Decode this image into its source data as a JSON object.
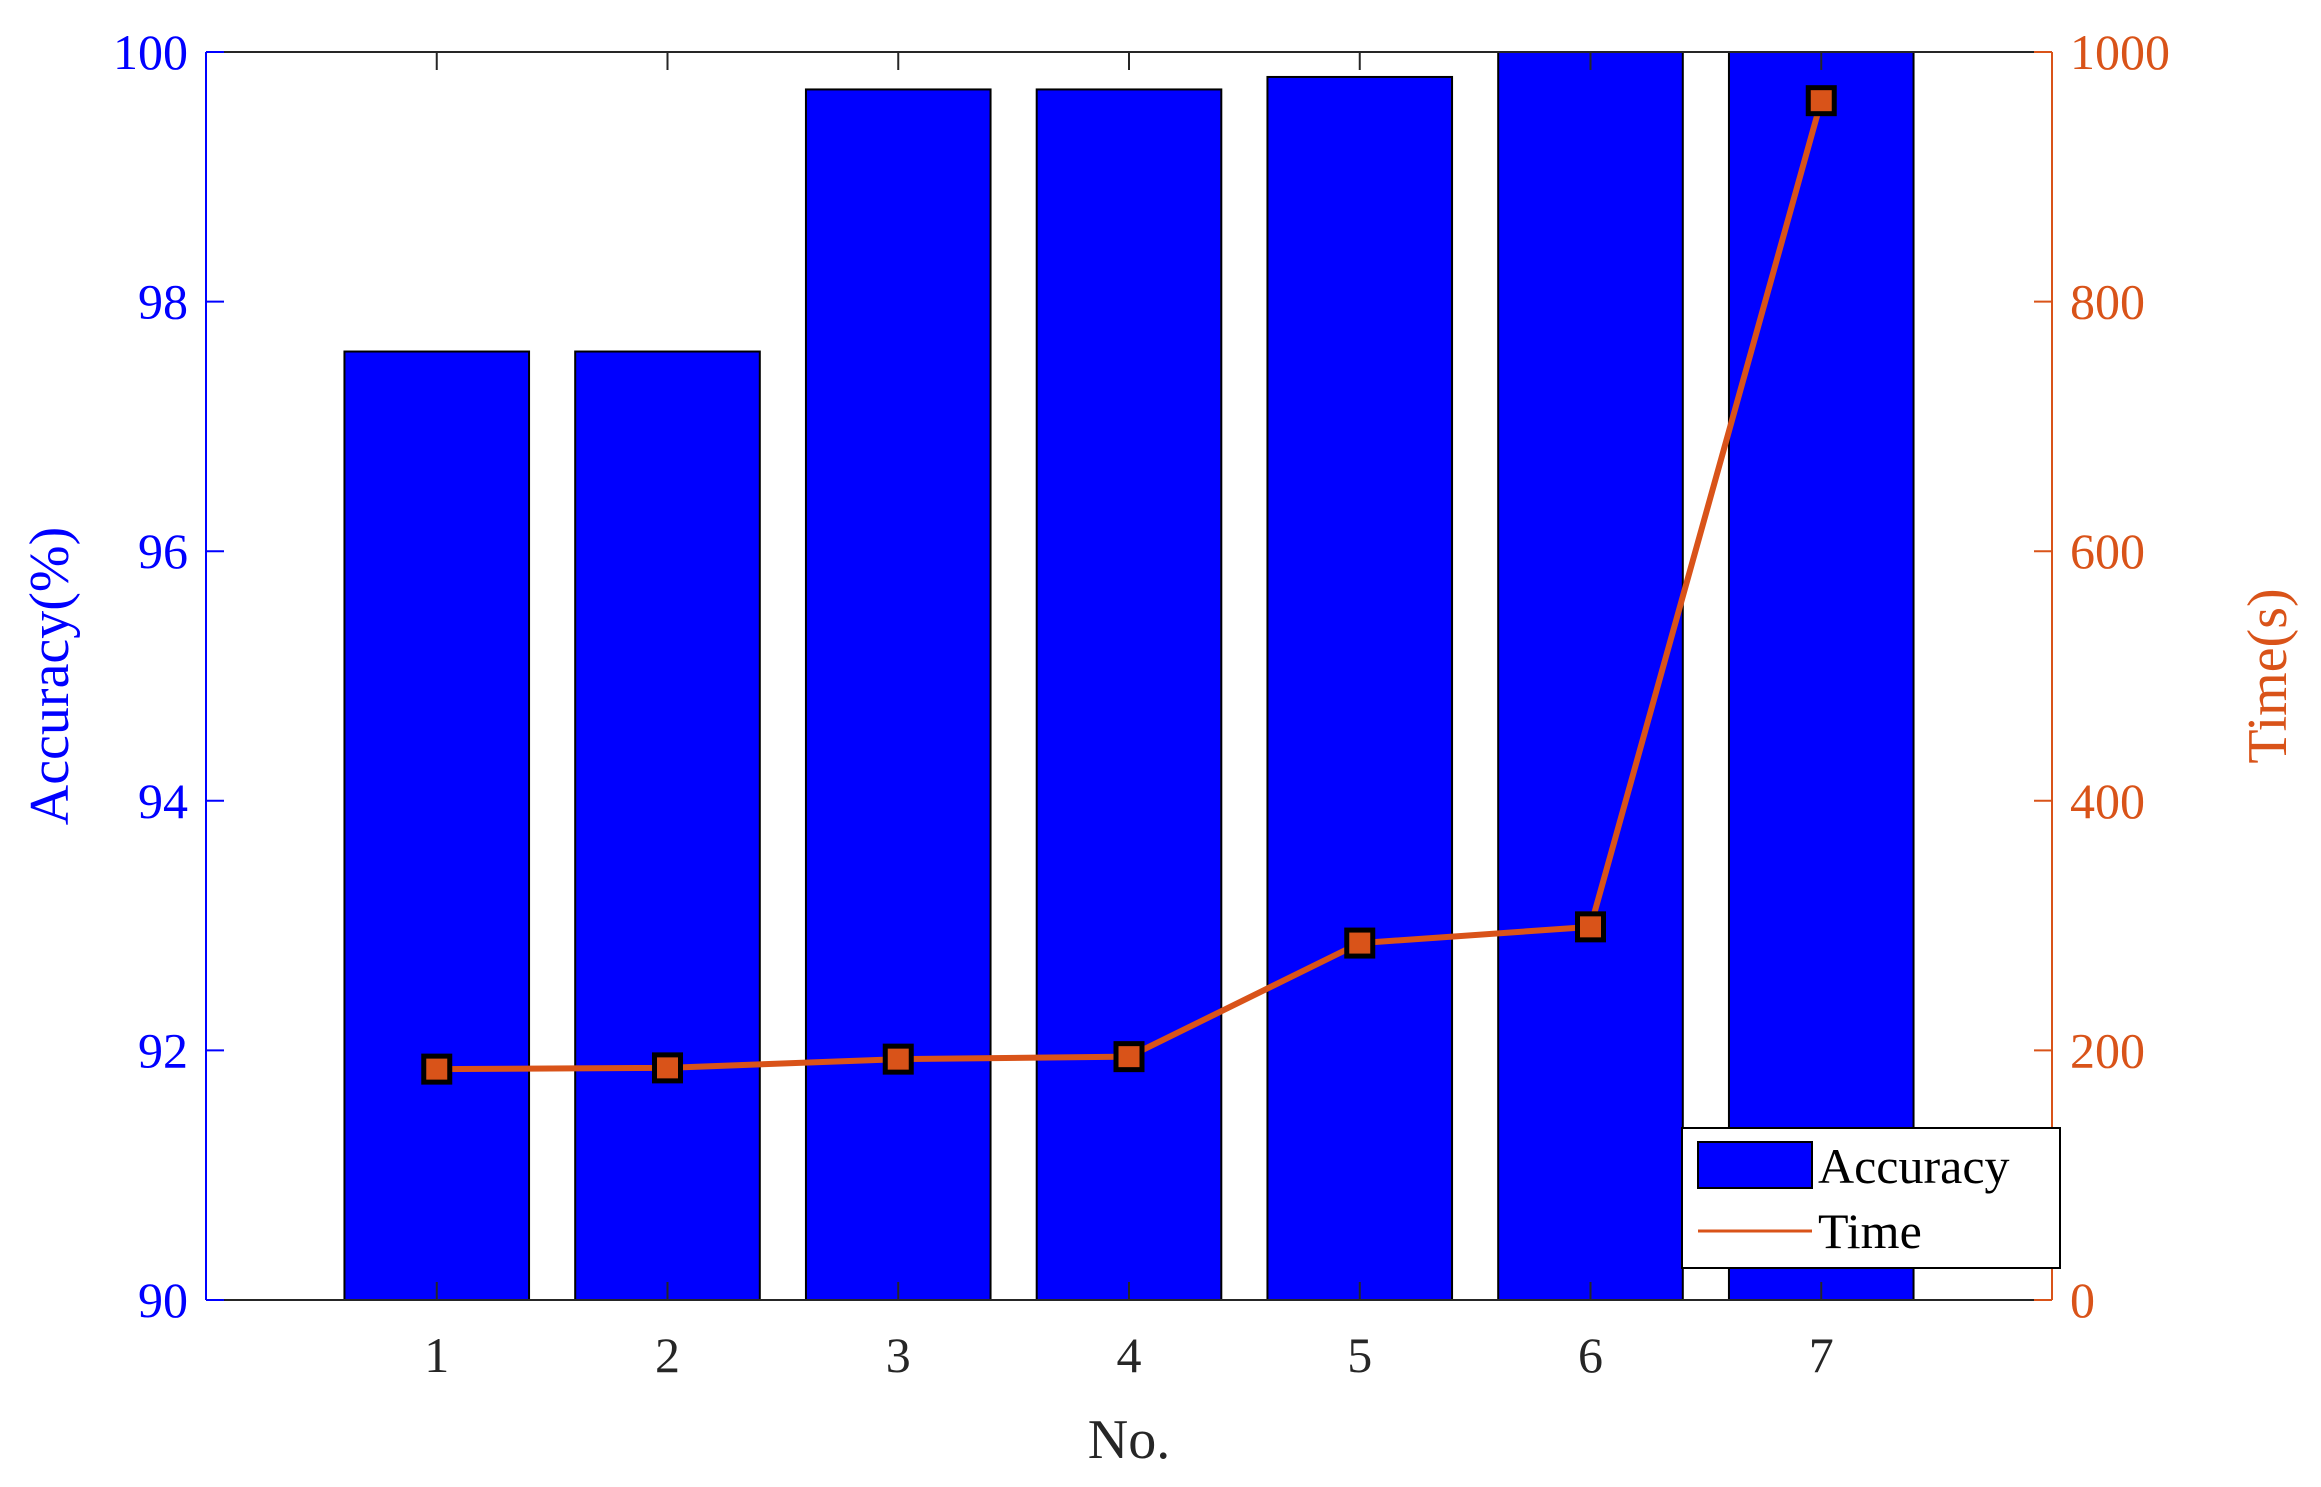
{
  "chart_data": {
    "type": "bar",
    "categories": [
      "1",
      "2",
      "3",
      "4",
      "5",
      "6",
      "7"
    ],
    "series": [
      {
        "name": "Accuracy",
        "type": "bar",
        "axis": "left",
        "values": [
          97.6,
          97.6,
          99.7,
          99.7,
          99.8,
          100,
          100
        ],
        "color": "#0000ff"
      },
      {
        "name": "Time",
        "type": "line",
        "axis": "right",
        "values": [
          185,
          186,
          193,
          195,
          286,
          299,
          961
        ],
        "color": "#d95319"
      }
    ],
    "xlabel": "No.",
    "ylabel_left": "Accuracy(%)",
    "ylabel_right": "Time(s)",
    "ylim_left": [
      90,
      100
    ],
    "ylim_right": [
      0,
      1000
    ],
    "xlim": [
      0,
      8
    ],
    "yticks_left": [
      "90",
      "92",
      "94",
      "96",
      "98",
      "100"
    ],
    "yticks_right": [
      "0",
      "200",
      "400",
      "600",
      "800",
      "1000"
    ],
    "xticks": [
      "1",
      "2",
      "3",
      "4",
      "5",
      "6",
      "7"
    ],
    "grid": false,
    "legend_position": "bottom-right",
    "colors": {
      "left_axis": "#0000ff",
      "right_axis": "#d95319",
      "bar_edge": "#000000",
      "marker_edge": "#000000"
    }
  }
}
